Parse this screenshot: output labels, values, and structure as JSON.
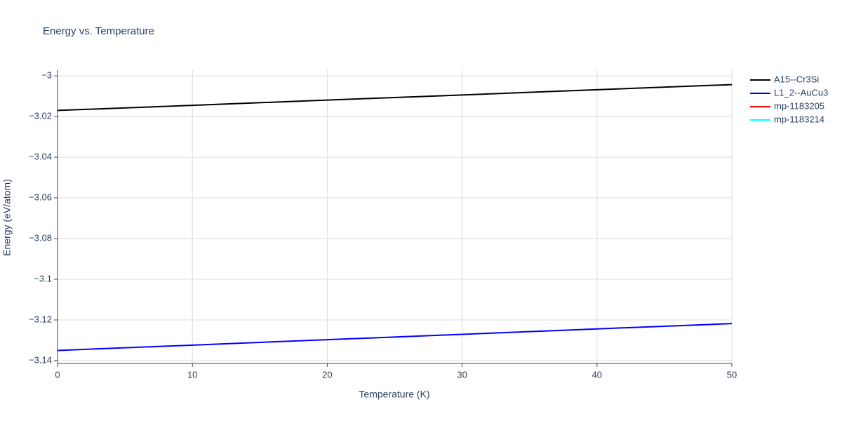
{
  "chart_data": {
    "type": "line",
    "title": "Energy vs. Temperature",
    "x_label": "Temperature (K)",
    "y_label": "Energy (eV/atom)",
    "x": [
      0,
      10,
      20,
      30,
      40,
      50
    ],
    "series": [
      {
        "name": "A15--Cr3Si",
        "color": "#000000",
        "values": [
          -3.017,
          -3.0145,
          -3.0119,
          -3.0094,
          -3.0068,
          -3.0043
        ]
      },
      {
        "name": "L1_2--AuCu3",
        "color": "#0000ff",
        "values": [
          -3.135,
          -3.1324,
          -3.1297,
          -3.1271,
          -3.1244,
          -3.1218
        ]
      },
      {
        "name": "mp-1183205",
        "color": "#ff0000",
        "values": [
          null,
          null,
          null,
          null,
          null,
          null
        ]
      },
      {
        "name": "mp-1183214",
        "color": "#00ffff",
        "values": [
          null,
          null,
          null,
          null,
          null,
          null
        ]
      }
    ],
    "xlim": [
      0,
      50
    ],
    "xticks": [
      0,
      10,
      20,
      30,
      40,
      50
    ],
    "ylim": [
      -3.1414,
      -2.9972
    ],
    "yticks": [
      {
        "value": -3,
        "label": "−3"
      },
      {
        "value": -3.02,
        "label": "−3.02"
      },
      {
        "value": -3.04,
        "label": "−3.04"
      },
      {
        "value": -3.06,
        "label": "−3.06"
      },
      {
        "value": -3.08,
        "label": "−3.08"
      },
      {
        "value": -3.1,
        "label": "−3.1"
      },
      {
        "value": -3.12,
        "label": "−3.12"
      },
      {
        "value": -3.14,
        "label": "−3.14"
      }
    ],
    "grid": true,
    "legend": "top-right"
  }
}
